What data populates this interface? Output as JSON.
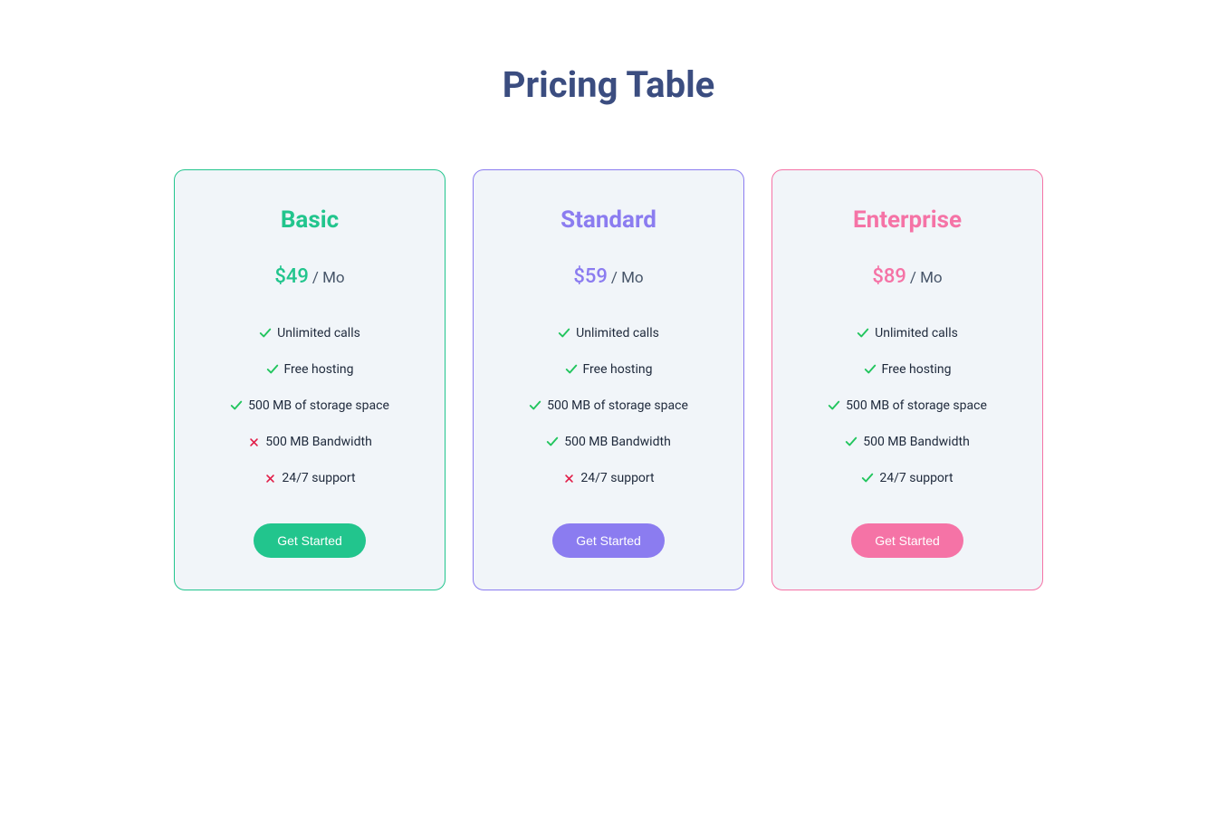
{
  "title": "Pricing Table",
  "colors": {
    "check": "#22c55e",
    "cross": "#e11d48",
    "title": "#3b4d80",
    "card_bg": "#f1f5f9",
    "period": "#475569",
    "feature_text": "#1e293b"
  },
  "plans": [
    {
      "name": "Basic",
      "price": "$49",
      "period": "/ Mo",
      "accent": "#22c58d",
      "button_bg": "#22c58d",
      "button_label": "Get Started",
      "features": [
        {
          "label": "Unlimited calls",
          "included": true
        },
        {
          "label": "Free hosting",
          "included": true
        },
        {
          "label": "500 MB of storage space",
          "included": true
        },
        {
          "label": "500 MB Bandwidth",
          "included": false
        },
        {
          "label": "24/7 support",
          "included": false
        }
      ]
    },
    {
      "name": "Standard",
      "price": "$59",
      "period": "/ Mo",
      "accent": "#8b7cf0",
      "button_bg": "#8b7cf0",
      "button_label": "Get Started",
      "features": [
        {
          "label": "Unlimited calls",
          "included": true
        },
        {
          "label": "Free hosting",
          "included": true
        },
        {
          "label": "500 MB of storage space",
          "included": true
        },
        {
          "label": "500 MB Bandwidth",
          "included": true
        },
        {
          "label": "24/7 support",
          "included": false
        }
      ]
    },
    {
      "name": "Enterprise",
      "price": "$89",
      "period": "/ Mo",
      "accent": "#f573a6",
      "button_bg": "#f573a6",
      "button_label": "Get Started",
      "features": [
        {
          "label": "Unlimited calls",
          "included": true
        },
        {
          "label": "Free hosting",
          "included": true
        },
        {
          "label": "500 MB of storage space",
          "included": true
        },
        {
          "label": "500 MB Bandwidth",
          "included": true
        },
        {
          "label": "24/7 support",
          "included": true
        }
      ]
    }
  ]
}
